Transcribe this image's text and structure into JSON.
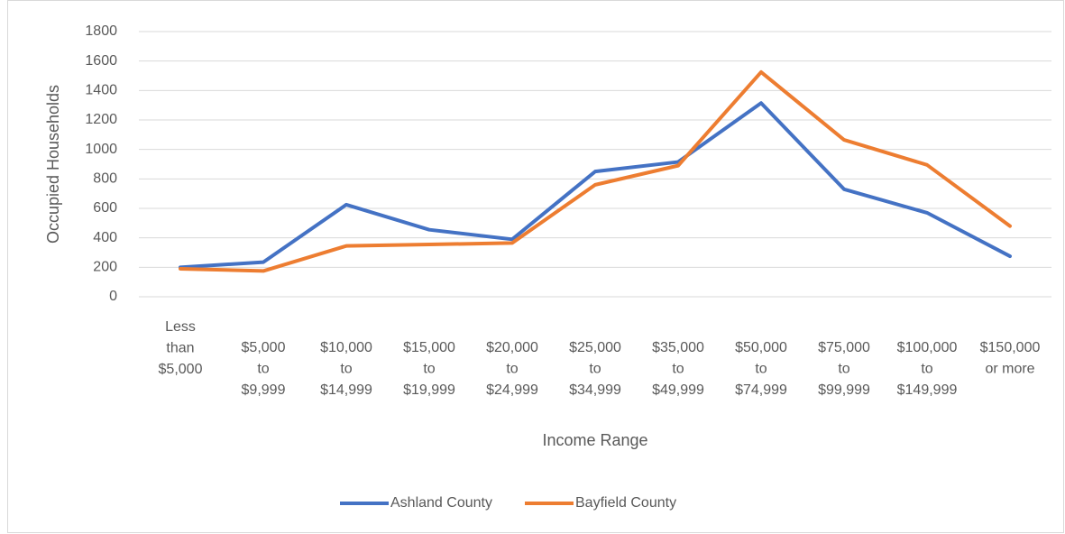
{
  "chart_data": {
    "type": "line",
    "x_label": "Income Range",
    "y_label": "Occupied Households",
    "categories": [
      "Less than $5,000",
      "$5,000 to $9,999",
      "$10,000 to $14,999",
      "$15,000 to $19,999",
      "$20,000 to $24,999",
      "$25,000 to $34,999",
      "$35,000 to $49,999",
      "$50,000 to $74,999",
      "$75,000 to $99,999",
      "$100,000 to $149,999",
      "$150,000 or more"
    ],
    "series": [
      {
        "name": "Ashland County",
        "color": "#4472c4",
        "values": [
          200,
          235,
          625,
          455,
          390,
          850,
          915,
          1315,
          730,
          570,
          275
        ]
      },
      {
        "name": "Bayfield County",
        "color": "#ed7d31",
        "values": [
          190,
          175,
          345,
          355,
          365,
          760,
          890,
          1525,
          1065,
          895,
          480
        ]
      }
    ],
    "ylim": [
      0,
      1800
    ],
    "yticks": [
      0,
      200,
      400,
      600,
      800,
      1000,
      1200,
      1400,
      1600,
      1800
    ],
    "grid": true,
    "legend": "bottom"
  }
}
